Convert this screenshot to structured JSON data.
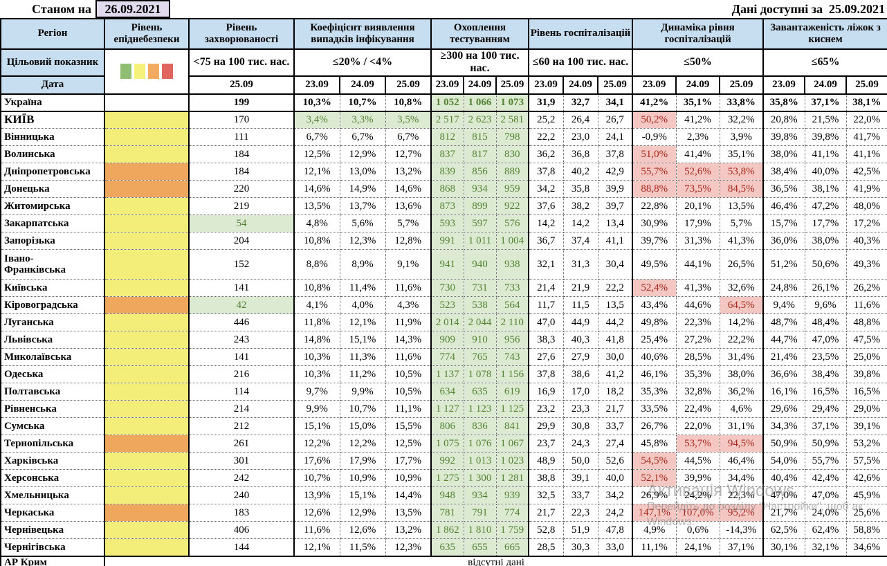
{
  "topbar": {
    "as_of_label": "Станом на",
    "as_of_date": "26.09.2021",
    "available_label": "Дані доступні за",
    "available_date": "25.09.2021"
  },
  "header": {
    "region_label": "Регіон",
    "target_label": "Цільовий показник",
    "date_label": "Дата",
    "groups": [
      {
        "title": "Рівень епіднебезпеки",
        "target": "",
        "dates": []
      },
      {
        "title": "Рівень захворюваності",
        "target": "<75 на 100 тис. нас.",
        "dates": [
          "25.09"
        ]
      },
      {
        "title": "Коефіцієнт виявлення випадків інфікування",
        "target": "≤20% / <4%",
        "dates": [
          "23.09",
          "24.09",
          "25.09"
        ]
      },
      {
        "title": "Охоплення тестуванням",
        "target": "≥300 на 100 тис. нас.",
        "dates": [
          "23.09",
          "24.09",
          "25.09"
        ]
      },
      {
        "title": "Рівень госпіталізацій",
        "target": "≤60 на 100 тис. нас.",
        "dates": [
          "23.09",
          "24.09",
          "25.09"
        ]
      },
      {
        "title": "Динаміка рівня госпіталізацій",
        "target": "≤50%",
        "dates": [
          "23.09",
          "24.09",
          "25.09"
        ]
      },
      {
        "title": "Завантаженість ліжок з киснем",
        "target": "≤65%",
        "dates": [
          "23.09",
          "24.09",
          "25.09"
        ]
      }
    ],
    "legend_colors": [
      "#8fbe72",
      "#f5f17b",
      "#f2ab60",
      "#e0655e"
    ]
  },
  "colors": {
    "header_blue": "#c7ddf0",
    "lavender_date": "#e2dbee",
    "level_yellow": "#f2ee79",
    "level_orange": "#efa75e",
    "green_bg": "#dcead2",
    "green_text": "#548235",
    "pink_bg": "#f4c7c3",
    "red_text": "#a6271c"
  },
  "table": {
    "rows": [
      {
        "region": "Україна",
        "bold": true,
        "level": null,
        "inc": "199",
        "incG": false,
        "det": [
          "10,3%",
          "10,7%",
          "10,8%"
        ],
        "detG": false,
        "test": [
          "1 052",
          "1 066",
          "1 073"
        ],
        "hosp": [
          "31,9",
          "32,7",
          "34,1"
        ],
        "dyn": [
          "41,2%",
          "35,1%",
          "33,8%"
        ],
        "dynHL": [
          false,
          false,
          false
        ],
        "beds": [
          "35,8%",
          "37,1%",
          "38,1%"
        ]
      },
      {
        "region": "КИЇВ",
        "caps": true,
        "level": "yellow",
        "inc": "170",
        "incG": false,
        "det": [
          "3,4%",
          "3,3%",
          "3,5%"
        ],
        "detG": true,
        "test": [
          "2 517",
          "2 623",
          "2 581"
        ],
        "hosp": [
          "25,2",
          "26,4",
          "26,7"
        ],
        "dyn": [
          "50,2%",
          "41,2%",
          "32,2%"
        ],
        "dynHL": [
          true,
          false,
          false
        ],
        "beds": [
          "20,8%",
          "21,5%",
          "22,0%"
        ]
      },
      {
        "region": "Вінницька",
        "level": "yellow",
        "inc": "111",
        "incG": false,
        "det": [
          "6,7%",
          "6,7%",
          "6,7%"
        ],
        "detG": false,
        "test": [
          "812",
          "815",
          "798"
        ],
        "hosp": [
          "22,2",
          "23,0",
          "24,1"
        ],
        "dyn": [
          "-0,9%",
          "2,3%",
          "3,9%"
        ],
        "dynHL": [
          false,
          false,
          false
        ],
        "beds": [
          "39,8%",
          "39,8%",
          "41,7%"
        ]
      },
      {
        "region": "Волинська",
        "level": "yellow",
        "inc": "184",
        "incG": false,
        "det": [
          "12,5%",
          "12,9%",
          "12,7%"
        ],
        "detG": false,
        "test": [
          "837",
          "817",
          "830"
        ],
        "hosp": [
          "36,2",
          "36,8",
          "37,8"
        ],
        "dyn": [
          "51,0%",
          "41,4%",
          "35,1%"
        ],
        "dynHL": [
          true,
          false,
          false
        ],
        "beds": [
          "38,0%",
          "41,1%",
          "41,1%"
        ]
      },
      {
        "region": "Дніпропетровська",
        "level": "orange",
        "inc": "184",
        "incG": false,
        "det": [
          "12,1%",
          "13,0%",
          "13,2%"
        ],
        "detG": false,
        "test": [
          "839",
          "856",
          "889"
        ],
        "hosp": [
          "37,8",
          "40,2",
          "42,9"
        ],
        "dyn": [
          "55,7%",
          "52,6%",
          "53,8%"
        ],
        "dynHL": [
          true,
          true,
          true
        ],
        "beds": [
          "38,4%",
          "40,0%",
          "42,5%"
        ]
      },
      {
        "region": "Донецька",
        "level": "orange",
        "inc": "220",
        "incG": false,
        "det": [
          "14,6%",
          "14,9%",
          "14,6%"
        ],
        "detG": false,
        "test": [
          "868",
          "934",
          "959"
        ],
        "hosp": [
          "34,2",
          "35,8",
          "39,9"
        ],
        "dyn": [
          "88,8%",
          "73,5%",
          "84,5%"
        ],
        "dynHL": [
          true,
          true,
          true
        ],
        "beds": [
          "36,5%",
          "38,1%",
          "41,9%"
        ]
      },
      {
        "region": "Житомирська",
        "level": "yellow",
        "inc": "219",
        "incG": false,
        "det": [
          "13,5%",
          "13,7%",
          "13,6%"
        ],
        "detG": false,
        "test": [
          "873",
          "899",
          "922"
        ],
        "hosp": [
          "37,6",
          "38,2",
          "39,7"
        ],
        "dyn": [
          "22,8%",
          "20,1%",
          "13,5%"
        ],
        "dynHL": [
          false,
          false,
          false
        ],
        "beds": [
          "46,4%",
          "47,2%",
          "48,0%"
        ]
      },
      {
        "region": "Закарпатська",
        "level": "yellow",
        "inc": "54",
        "incG": true,
        "det": [
          "4,8%",
          "5,6%",
          "5,7%"
        ],
        "detG": false,
        "test": [
          "593",
          "597",
          "576"
        ],
        "hosp": [
          "14,2",
          "14,2",
          "13,4"
        ],
        "dyn": [
          "30,9%",
          "17,9%",
          "5,7%"
        ],
        "dynHL": [
          false,
          false,
          false
        ],
        "beds": [
          "15,7%",
          "17,7%",
          "17,2%"
        ]
      },
      {
        "region": "Запорізька",
        "level": "yellow",
        "inc": "204",
        "incG": false,
        "det": [
          "10,8%",
          "12,3%",
          "12,8%"
        ],
        "detG": false,
        "test": [
          "991",
          "1 011",
          "1 004"
        ],
        "hosp": [
          "36,7",
          "37,4",
          "41,1"
        ],
        "dyn": [
          "39,7%",
          "31,3%",
          "41,3%"
        ],
        "dynHL": [
          false,
          false,
          false
        ],
        "beds": [
          "36,0%",
          "38,0%",
          "40,3%"
        ]
      },
      {
        "region": "Івано-\nФранківська",
        "tall": true,
        "level": "yellow",
        "inc": "152",
        "incG": false,
        "det": [
          "8,8%",
          "8,9%",
          "9,1%"
        ],
        "detG": false,
        "test": [
          "941",
          "940",
          "938"
        ],
        "hosp": [
          "32,1",
          "31,3",
          "30,4"
        ],
        "dyn": [
          "49,5%",
          "44,1%",
          "26,5%"
        ],
        "dynHL": [
          false,
          false,
          false
        ],
        "beds": [
          "51,2%",
          "50,6%",
          "49,3%"
        ]
      },
      {
        "region": "Київська",
        "level": "yellow",
        "inc": "141",
        "incG": false,
        "det": [
          "10,8%",
          "11,4%",
          "11,6%"
        ],
        "detG": false,
        "test": [
          "730",
          "731",
          "733"
        ],
        "hosp": [
          "21,4",
          "21,9",
          "22,2"
        ],
        "dyn": [
          "52,4%",
          "41,3%",
          "32,6%"
        ],
        "dynHL": [
          true,
          false,
          false
        ],
        "beds": [
          "24,8%",
          "26,1%",
          "26,2%"
        ]
      },
      {
        "region": "Кіровоградська",
        "level": "orange",
        "inc": "42",
        "incG": true,
        "det": [
          "4,1%",
          "4,0%",
          "4,3%"
        ],
        "detG": false,
        "test": [
          "523",
          "538",
          "564"
        ],
        "hosp": [
          "11,7",
          "11,5",
          "13,5"
        ],
        "dyn": [
          "43,4%",
          "44,6%",
          "64,5%"
        ],
        "dynHL": [
          false,
          false,
          true
        ],
        "beds": [
          "9,4%",
          "9,6%",
          "11,6%"
        ]
      },
      {
        "region": "Луганська",
        "level": "yellow",
        "inc": "446",
        "incG": false,
        "det": [
          "11,8%",
          "12,1%",
          "11,9%"
        ],
        "detG": false,
        "test": [
          "2 014",
          "2 044",
          "2 110"
        ],
        "hosp": [
          "47,0",
          "44,9",
          "44,2"
        ],
        "dyn": [
          "49,8%",
          "22,3%",
          "14,2%"
        ],
        "dynHL": [
          false,
          false,
          false
        ],
        "beds": [
          "48,7%",
          "48,4%",
          "48,8%"
        ]
      },
      {
        "region": "Львівська",
        "level": "yellow",
        "inc": "243",
        "incG": false,
        "det": [
          "14,8%",
          "15,1%",
          "14,3%"
        ],
        "detG": false,
        "test": [
          "909",
          "910",
          "956"
        ],
        "hosp": [
          "38,3",
          "40,3",
          "41,8"
        ],
        "dyn": [
          "25,4%",
          "27,2%",
          "22,2%"
        ],
        "dynHL": [
          false,
          false,
          false
        ],
        "beds": [
          "44,7%",
          "47,0%",
          "47,5%"
        ]
      },
      {
        "region": "Миколаївська",
        "level": "yellow",
        "inc": "141",
        "incG": false,
        "det": [
          "10,3%",
          "11,3%",
          "11,6%"
        ],
        "detG": false,
        "test": [
          "774",
          "765",
          "743"
        ],
        "hosp": [
          "27,6",
          "27,9",
          "30,0"
        ],
        "dyn": [
          "40,6%",
          "28,5%",
          "31,4%"
        ],
        "dynHL": [
          false,
          false,
          false
        ],
        "beds": [
          "21,4%",
          "23,5%",
          "25,0%"
        ]
      },
      {
        "region": "Одеська",
        "level": "yellow",
        "inc": "216",
        "incG": false,
        "det": [
          "10,3%",
          "11,2%",
          "10,5%"
        ],
        "detG": false,
        "test": [
          "1 137",
          "1 078",
          "1 156"
        ],
        "hosp": [
          "37,8",
          "38,6",
          "41,2"
        ],
        "dyn": [
          "46,1%",
          "35,3%",
          "38,0%"
        ],
        "dynHL": [
          false,
          false,
          false
        ],
        "beds": [
          "36,6%",
          "38,4%",
          "39,8%"
        ]
      },
      {
        "region": "Полтавська",
        "level": "yellow",
        "inc": "114",
        "incG": false,
        "det": [
          "9,7%",
          "9,9%",
          "10,5%"
        ],
        "detG": false,
        "test": [
          "634",
          "635",
          "619"
        ],
        "hosp": [
          "16,9",
          "17,0",
          "18,2"
        ],
        "dyn": [
          "35,3%",
          "32,8%",
          "36,2%"
        ],
        "dynHL": [
          false,
          false,
          false
        ],
        "beds": [
          "16,1%",
          "16,5%",
          "16,5%"
        ]
      },
      {
        "region": "Рівненська",
        "level": "yellow",
        "inc": "214",
        "incG": false,
        "det": [
          "9,9%",
          "10,7%",
          "11,1%"
        ],
        "detG": false,
        "test": [
          "1 127",
          "1 123",
          "1 125"
        ],
        "hosp": [
          "23,2",
          "23,3",
          "21,7"
        ],
        "dyn": [
          "33,5%",
          "22,4%",
          "4,6%"
        ],
        "dynHL": [
          false,
          false,
          false
        ],
        "beds": [
          "29,6%",
          "29,4%",
          "29,0%"
        ]
      },
      {
        "region": "Сумська",
        "level": "yellow",
        "inc": "212",
        "incG": false,
        "det": [
          "15,1%",
          "15,0%",
          "15,5%"
        ],
        "detG": false,
        "test": [
          "806",
          "836",
          "841"
        ],
        "hosp": [
          "29,9",
          "30,8",
          "33,7"
        ],
        "dyn": [
          "26,7%",
          "22,0%",
          "31,1%"
        ],
        "dynHL": [
          false,
          false,
          false
        ],
        "beds": [
          "34,3%",
          "37,1%",
          "39,1%"
        ]
      },
      {
        "region": "Тернопільська",
        "level": "orange",
        "inc": "261",
        "incG": false,
        "det": [
          "12,2%",
          "12,2%",
          "12,5%"
        ],
        "detG": false,
        "test": [
          "1 075",
          "1 076",
          "1 067"
        ],
        "hosp": [
          "23,7",
          "24,3",
          "27,4"
        ],
        "dyn": [
          "45,8%",
          "53,7%",
          "94,5%"
        ],
        "dynHL": [
          false,
          true,
          true
        ],
        "beds": [
          "50,9%",
          "50,9%",
          "53,2%"
        ]
      },
      {
        "region": "Харківська",
        "level": "yellow",
        "inc": "301",
        "incG": false,
        "det": [
          "17,6%",
          "17,9%",
          "17,7%"
        ],
        "detG": false,
        "test": [
          "992",
          "1 013",
          "1 023"
        ],
        "hosp": [
          "48,9",
          "50,0",
          "52,6"
        ],
        "dyn": [
          "54,5%",
          "44,5%",
          "46,4%"
        ],
        "dynHL": [
          true,
          false,
          false
        ],
        "beds": [
          "54,0%",
          "55,7%",
          "57,5%"
        ]
      },
      {
        "region": "Херсонська",
        "level": "yellow",
        "inc": "242",
        "incG": false,
        "det": [
          "10,7%",
          "10,9%",
          "10,9%"
        ],
        "detG": false,
        "test": [
          "1 275",
          "1 300",
          "1 281"
        ],
        "hosp": [
          "38,8",
          "39,1",
          "40,0"
        ],
        "dyn": [
          "52,1%",
          "39,9%",
          "34,4%"
        ],
        "dynHL": [
          true,
          false,
          false
        ],
        "beds": [
          "40,4%",
          "42,4%",
          "42,6%"
        ]
      },
      {
        "region": "Хмельницька",
        "level": "yellow",
        "inc": "240",
        "incG": false,
        "det": [
          "13,9%",
          "15,1%",
          "14,4%"
        ],
        "detG": false,
        "test": [
          "948",
          "934",
          "939"
        ],
        "hosp": [
          "32,5",
          "33,7",
          "34,2"
        ],
        "dyn": [
          "26,9%",
          "24,2%",
          "22,3%"
        ],
        "dynHL": [
          false,
          false,
          false
        ],
        "beds": [
          "47,0%",
          "47,0%",
          "45,9%"
        ]
      },
      {
        "region": "Черкаська",
        "level": "orange",
        "inc": "183",
        "incG": false,
        "det": [
          "12,6%",
          "12,9%",
          "13,5%"
        ],
        "detG": false,
        "test": [
          "781",
          "791",
          "774"
        ],
        "hosp": [
          "21,7",
          "22,3",
          "24,2"
        ],
        "dyn": [
          "147,1%",
          "107,0%",
          "95,2%"
        ],
        "dynHL": [
          true,
          true,
          true
        ],
        "beds": [
          "21,7%",
          "24,0%",
          "25,6%"
        ]
      },
      {
        "region": "Чернівецька",
        "level": "yellow",
        "inc": "406",
        "incG": false,
        "det": [
          "11,6%",
          "12,6%",
          "13,2%"
        ],
        "detG": false,
        "test": [
          "1 862",
          "1 810",
          "1 759"
        ],
        "hosp": [
          "52,8",
          "51,9",
          "47,8"
        ],
        "dyn": [
          "4,9%",
          "0,6%",
          "-14,3%"
        ],
        "dynHL": [
          false,
          false,
          false
        ],
        "beds": [
          "62,5%",
          "62,4%",
          "58,8%"
        ]
      },
      {
        "region": "Чернігівська",
        "level": "yellow",
        "inc": "144",
        "incG": false,
        "det": [
          "12,1%",
          "11,5%",
          "12,3%"
        ],
        "detG": false,
        "test": [
          "635",
          "655",
          "665"
        ],
        "hosp": [
          "28,5",
          "30,3",
          "33,0"
        ],
        "dyn": [
          "11,1%",
          "24,1%",
          "37,1%"
        ],
        "dynHL": [
          false,
          false,
          false
        ],
        "beds": [
          "30,1%",
          "32,1%",
          "34,6%"
        ]
      }
    ],
    "footer": {
      "region": "АР Крим",
      "note": "відсутні дані"
    }
  },
  "watermark": {
    "line1": "Активація Windows",
    "line2": "Перейдіть до розділу \"Настройки\", щоб ак",
    "line3": "Windows."
  }
}
